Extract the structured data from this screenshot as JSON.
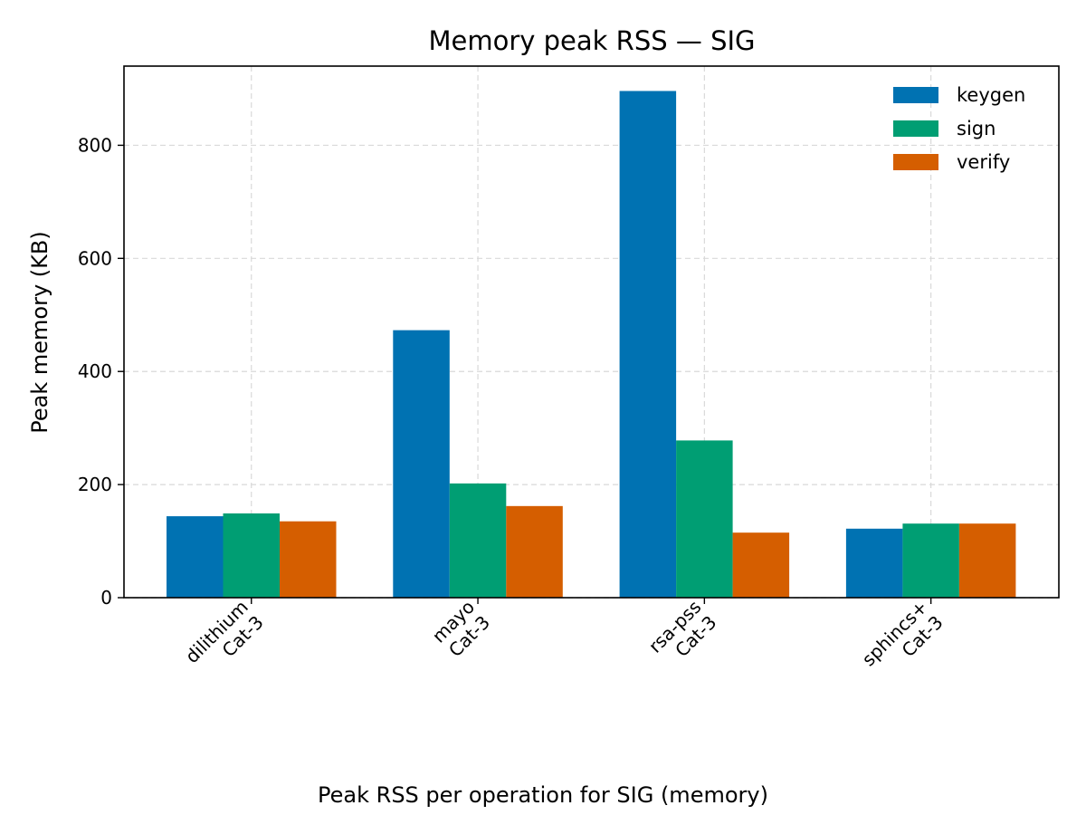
{
  "chart_data": {
    "type": "bar",
    "title": "Memory peak RSS — SIG",
    "xlabel": "",
    "ylabel": "Peak memory (KB)",
    "categories": [
      "dilithium\nCat-3",
      "mayo\nCat-3",
      "rsa-pss\nCat-3",
      "sphincs+\nCat-3"
    ],
    "series": [
      {
        "name": "keygen",
        "color": "#0072b2",
        "values": [
          144,
          473,
          896,
          122
        ]
      },
      {
        "name": "sign",
        "color": "#009e73",
        "values": [
          149,
          202,
          278,
          131
        ]
      },
      {
        "name": "verify",
        "color": "#d55e00",
        "values": [
          135,
          162,
          115,
          131
        ]
      }
    ],
    "ylim": [
      0,
      940
    ],
    "yticks": [
      0,
      200,
      400,
      600,
      800
    ],
    "grid": true,
    "legend": "top-right"
  },
  "caption": "Peak RSS per operation for SIG (memory)"
}
